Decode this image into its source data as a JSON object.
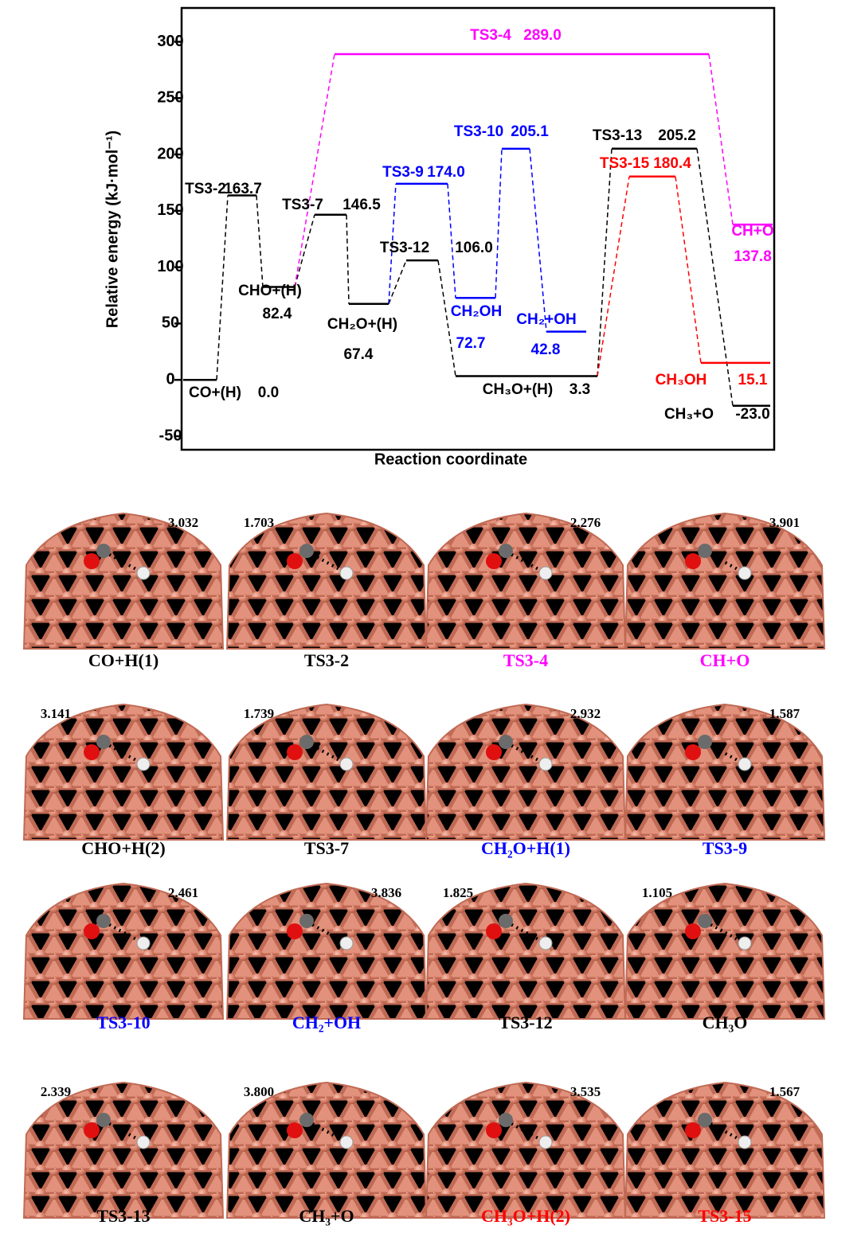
{
  "chart_data": {
    "type": "energy-profile",
    "ylabel": "Relative energy (kJ·mol⁻¹)",
    "xlabel": "Reaction coordinate",
    "ylim": [
      -62,
      330
    ],
    "yticks": [
      -50,
      0,
      50,
      100,
      150,
      200,
      250,
      300
    ],
    "levels": [
      {
        "name": "CO+(H)",
        "value": 0,
        "value_label": "0.0",
        "color": "#000000"
      },
      {
        "name": "TS3-2",
        "value": 163.7,
        "color": "#000000"
      },
      {
        "name": "CHO+(H)",
        "value": 82.4,
        "color": "#000000"
      },
      {
        "name": "TS3-7",
        "value": 146.5,
        "color": "#000000"
      },
      {
        "name": "CH₂O+(H)",
        "value": 67.4,
        "color": "#000000"
      },
      {
        "name": "TS3-12",
        "value": 106.0,
        "value_label": "106.0",
        "color": "#000000"
      },
      {
        "name": "CH₃O+(H)",
        "value": 3.3,
        "color": "#000000"
      },
      {
        "name": "TS3-9",
        "value": 174.0,
        "value_label": "174.0",
        "color": "#0000ff"
      },
      {
        "name": "CH₂OH",
        "value": 72.7,
        "color": "#0000ff"
      },
      {
        "name": "TS3-10",
        "value": 205.1,
        "color": "#0000ff"
      },
      {
        "name": "CH₂+OH",
        "value": 42.8,
        "color": "#0000ff"
      },
      {
        "name": "TS3-13",
        "value": 205.2,
        "color": "#000000"
      },
      {
        "name": "TS3-15",
        "value": 180.4,
        "color": "#ff0000"
      },
      {
        "name": "CH₃OH",
        "value": 15.1,
        "color": "#ff0000"
      },
      {
        "name": "CH₃+O",
        "value": -23.0,
        "value_label": "-23.0",
        "color": "#000000"
      },
      {
        "name": "TS3-4",
        "value": 289.0,
        "value_label": "289.0",
        "color": "#ff00ff"
      },
      {
        "name": "CH+O",
        "value": 137.8,
        "color": "#ff00ff"
      }
    ]
  },
  "structures": [
    {
      "caption": "CO+H(1)",
      "distance": "3.032",
      "color": "#000000"
    },
    {
      "caption": "TS3-2",
      "distance": "1.703",
      "color": "#000000"
    },
    {
      "caption": "TS3-4",
      "distance": "2.276",
      "color": "#ff00ff"
    },
    {
      "caption": "CH+O",
      "distance": "3.901",
      "color": "#ff00ff"
    },
    {
      "caption": "CHO+H(2)",
      "distance": "3.141",
      "color": "#000000"
    },
    {
      "caption": "TS3-7",
      "distance": "1.739",
      "color": "#000000"
    },
    {
      "caption": "CH₂O+H(1)",
      "distance": "2.932",
      "color": "#0000ff"
    },
    {
      "caption": "TS3-9",
      "distance": "1.587",
      "color": "#0000ff"
    },
    {
      "caption": "TS3-10",
      "distance": "2.461",
      "color": "#0000ff"
    },
    {
      "caption": "CH₂+OH",
      "distance": "3.836",
      "color": "#0000ff"
    },
    {
      "caption": "TS3-12",
      "distance": "1.825",
      "color": "#000000"
    },
    {
      "caption": "CH₃O",
      "distance": "1.105",
      "color": "#000000"
    },
    {
      "caption": "TS3-13",
      "distance": "2.339",
      "color": "#000000"
    },
    {
      "caption": "CH₃+O",
      "distance": "3.800",
      "color": "#000000"
    },
    {
      "caption": "CH₃O+H(2)",
      "distance": "3.535",
      "color": "#ff0000"
    },
    {
      "caption": "TS3-15",
      "distance": "1.567",
      "color": "#ff0000"
    }
  ]
}
